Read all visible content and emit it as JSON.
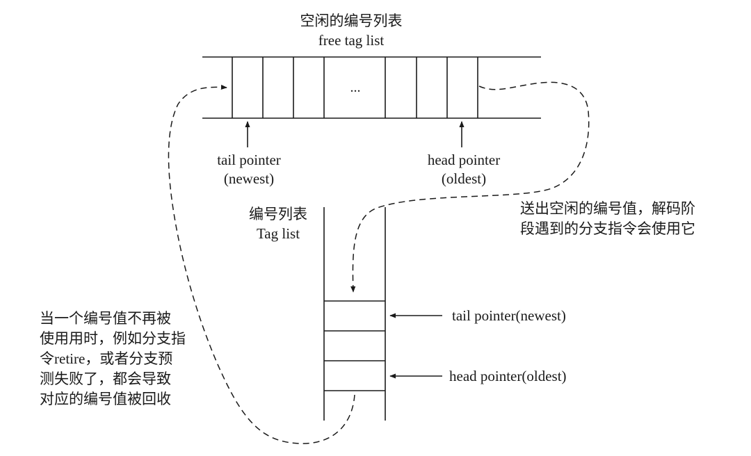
{
  "free_list": {
    "title_cn": "空闲的编号列表",
    "title_en": "free tag list",
    "ellipsis": "...",
    "tail_label": "tail pointer",
    "tail_sub": "(newest)",
    "head_label": "head pointer",
    "head_sub": "(oldest)"
  },
  "tag_list": {
    "title_cn": "编号列表",
    "title_en": "Tag list",
    "tail_pointer": "tail pointer(newest)",
    "head_pointer": "head pointer(oldest)"
  },
  "notes": {
    "send_out": [
      "送出空闲的编号值，解码阶",
      "段遇到的分支指令会使用它"
    ],
    "recycle": [
      "当一个编号值不再被",
      "使用用时，例如分支指",
      "令retire，或者分支预",
      "测失败了，都会导致",
      "对应的编号值被回收"
    ]
  },
  "colors": {
    "ink": "#1a1a1a",
    "background": "#ffffff"
  }
}
